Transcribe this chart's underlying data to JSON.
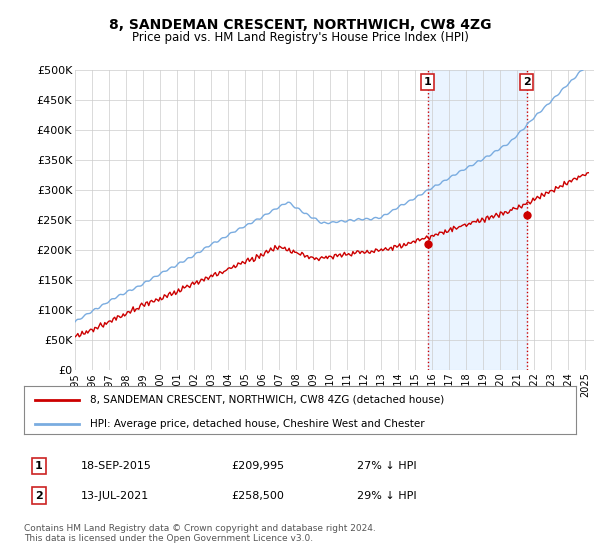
{
  "title": "8, SANDEMAN CRESCENT, NORTHWICH, CW8 4ZG",
  "subtitle": "Price paid vs. HM Land Registry's House Price Index (HPI)",
  "ylabel_ticks": [
    "£0",
    "£50K",
    "£100K",
    "£150K",
    "£200K",
    "£250K",
    "£300K",
    "£350K",
    "£400K",
    "£450K",
    "£500K"
  ],
  "ylim": [
    0,
    500000
  ],
  "ytick_vals": [
    0,
    50000,
    100000,
    150000,
    200000,
    250000,
    300000,
    350000,
    400000,
    450000,
    500000
  ],
  "xlim_start": 1995.0,
  "xlim_end": 2025.5,
  "xtick_years": [
    1995,
    1996,
    1997,
    1998,
    1999,
    2000,
    2001,
    2002,
    2003,
    2004,
    2005,
    2006,
    2007,
    2008,
    2009,
    2010,
    2011,
    2012,
    2013,
    2014,
    2015,
    2016,
    2017,
    2018,
    2019,
    2020,
    2021,
    2022,
    2023,
    2024,
    2025
  ],
  "hpi_color": "#7aace0",
  "price_color": "#cc0000",
  "sale1_x": 2015.72,
  "sale1_y": 209995,
  "sale2_x": 2021.54,
  "sale2_y": 258500,
  "vline_color": "#cc0000",
  "shaded_color": "#ddeeff",
  "legend_line1": "8, SANDEMAN CRESCENT, NORTHWICH, CW8 4ZG (detached house)",
  "legend_line2": "HPI: Average price, detached house, Cheshire West and Chester",
  "table_row1": [
    "1",
    "18-SEP-2015",
    "£209,995",
    "27% ↓ HPI"
  ],
  "table_row2": [
    "2",
    "13-JUL-2021",
    "£258,500",
    "29% ↓ HPI"
  ],
  "footer": "Contains HM Land Registry data © Crown copyright and database right 2024.\nThis data is licensed under the Open Government Licence v3.0.",
  "background_color": "#ffffff",
  "grid_color": "#cccccc"
}
